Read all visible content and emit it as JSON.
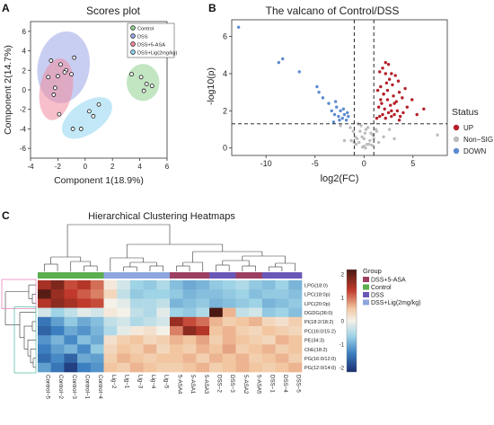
{
  "panels": {
    "a": "A",
    "b": "B",
    "c": "C"
  },
  "colors": {
    "control": "#2e9a3c",
    "dss": "#3a4db5",
    "asa": "#c0394f",
    "lig": "#4aa8c9",
    "ell_control": "#8fd08f",
    "ell_dss": "#9aa5e8",
    "ell_asa": "#f08a9c",
    "ell_lig": "#8fd6f0",
    "up": "#b3202a",
    "nonsig": "#bdbdbd",
    "down": "#5b8bd0",
    "heat_low": "#1f3f8f",
    "heat_mid": "#f4f1e9",
    "heat_high": "#7a1f15"
  },
  "chart_data": [
    {
      "type": "scatter",
      "title": "Scores plot",
      "xlabel": "Component 1(18.9%)",
      "ylabel": "Component 2(14.7%)",
      "xlim": [
        -4,
        6
      ],
      "ylim": [
        -7,
        7
      ],
      "x_ticks": [
        "-4",
        "-2",
        "0",
        "2",
        "4",
        "6"
      ],
      "y_ticks": [
        "-6",
        "-4",
        "-2",
        "0",
        "2",
        "4",
        "6"
      ],
      "legend": [
        "Control",
        "DSS",
        "DSS+5-ASA",
        "DSS+Lig(2mg/kg)"
      ],
      "series": [
        {
          "name": "Control",
          "x": [
            3.4,
            4.1,
            4.5,
            4.3,
            4.9
          ],
          "y": [
            1.6,
            1.3,
            0.6,
            -0.1,
            0.4
          ]
        },
        {
          "name": "DSS",
          "x": [
            -2.5,
            -1.8,
            -1.4,
            -1.0,
            -0.8,
            -2.0
          ],
          "y": [
            3.0,
            2.6,
            2.0,
            1.6,
            3.3,
            1.4
          ]
        },
        {
          "name": "DSS+5-ASA",
          "x": [
            -2.7,
            -2.2,
            -1.5,
            -2.3,
            -1.9
          ],
          "y": [
            1.3,
            0.2,
            1.8,
            -0.5,
            -2.5
          ]
        },
        {
          "name": "DSS+Lig(2mg/kg)",
          "x": [
            -0.9,
            -0.3,
            0.3,
            1.0,
            0.6
          ],
          "y": [
            -4.0,
            -4.0,
            -2.2,
            -1.5,
            -2.7
          ]
        }
      ]
    },
    {
      "type": "scatter",
      "title": "The valcano of Control/DSS",
      "xlabel": "log2(FC)",
      "ylabel": "-log10(p)",
      "xlim": [
        -13.5,
        8.5
      ],
      "ylim": [
        -0.4,
        6.9
      ],
      "x_ticks": [
        "-10",
        "-5",
        "0",
        "5"
      ],
      "y_ticks": [
        "0",
        "2",
        "4",
        "6"
      ],
      "legend_title": "Status",
      "legend": [
        "UP",
        "Non−SIG",
        "DOWN"
      ],
      "series": [
        {
          "name": "UP",
          "x": [
            1.3,
            1.6,
            1.9,
            2.2,
            2.5,
            2.8,
            3.1,
            3.4,
            3.7,
            4.0,
            4.4,
            4.9,
            5.4,
            6.1,
            1.5,
            1.8,
            2.1,
            2.4,
            2.7,
            3.0,
            3.3,
            3.6,
            3.9,
            4.2,
            1.4,
            1.7,
            2.0,
            2.3,
            2.6,
            2.9,
            3.2,
            3.5,
            1.6,
            1.9,
            2.2,
            2.5,
            2.8,
            3.1,
            2.0,
            2.4,
            2.8,
            3.6,
            1.7,
            2.2
          ],
          "y": [
            1.6,
            1.7,
            1.8,
            1.6,
            1.9,
            1.7,
            1.8,
            2.0,
            1.7,
            1.9,
            2.2,
            2.6,
            1.8,
            2.1,
            2.2,
            2.4,
            2.1,
            2.6,
            2.3,
            2.8,
            2.5,
            3.0,
            2.7,
            3.2,
            3.1,
            3.3,
            2.9,
            3.5,
            3.7,
            3.4,
            3.9,
            3.6,
            4.1,
            4.3,
            4.0,
            4.5,
            2.0,
            2.4,
            2.9,
            3.1,
            4.0,
            1.5,
            2.6,
            4.6
          ]
        },
        {
          "name": "DOWN",
          "x": [
            -12.8,
            -8.3,
            -8.7,
            -6.6,
            -4.8,
            -4.6,
            -4.2,
            -3.6,
            -3.3,
            -3.0,
            -2.8,
            -2.6,
            -2.4,
            -2.2,
            -2.0,
            -1.8,
            -1.6,
            -3.1,
            -2.9,
            -2.5,
            -2.1,
            -1.7
          ],
          "y": [
            6.5,
            4.8,
            4.6,
            4.1,
            3.3,
            3.0,
            2.7,
            2.4,
            2.0,
            1.8,
            2.2,
            1.7,
            2.0,
            1.6,
            1.8,
            1.5,
            1.7,
            1.4,
            2.5,
            1.5,
            2.1,
            1.9
          ]
        },
        {
          "name": "Non−SIG",
          "x": [
            0.0,
            -0.5,
            0.6,
            -0.9,
            0.9,
            -1.1,
            1.2,
            -0.3,
            0.3,
            -0.7,
            0.7,
            -1.4,
            1.5,
            -0.2,
            0.2,
            -0.6,
            0.5,
            1.0,
            -1.0,
            0.1,
            -0.4,
            0.4,
            2.0,
            -2.0,
            2.6,
            3.1,
            -2.4,
            7.5,
            0.8,
            -0.8,
            1.3,
            -1.3,
            0.0,
            0.15,
            -0.15
          ],
          "y": [
            0.1,
            0.3,
            0.4,
            0.6,
            0.7,
            0.9,
            1.0,
            1.2,
            0.2,
            0.5,
            0.8,
            1.1,
            0.3,
            0.6,
            1.0,
            1.3,
            0.2,
            0.5,
            0.3,
            0.8,
            0.9,
            1.1,
            0.6,
            0.4,
            1.0,
            0.5,
            1.2,
            0.7,
            0.15,
            0.2,
            0.9,
            0.4,
            0.5,
            0.0,
            0.05
          ]
        }
      ],
      "thresholds": {
        "x": [
          -1,
          1
        ],
        "y": 1.3
      }
    },
    {
      "type": "heatmap",
      "title": "Hierarchical Clustering Heatmaps",
      "columns": [
        "Control−5",
        "Control−2",
        "Control−3",
        "Control−1",
        "Control−4",
        "Lig−2",
        "Lig−1",
        "Lig−3",
        "Lig−4",
        "Lig−5",
        "5-ASA4",
        "5-ASA1",
        "5-ASA3",
        "DSS−2",
        "DSS−3",
        "5-ASA2",
        "5-ASA5",
        "DSS−1",
        "DSS−4",
        "DSS−5"
      ],
      "column_groups": [
        "Control",
        "Control",
        "Control",
        "Control",
        "Control",
        "DSS+Lig(2mg/kg)",
        "DSS+Lig(2mg/kg)",
        "DSS+Lig(2mg/kg)",
        "DSS+Lig(2mg/kg)",
        "DSS+Lig(2mg/kg)",
        "DSS+5-ASA",
        "DSS+5-ASA",
        "DSS+5-ASA",
        "DSS",
        "DSS",
        "DSS+5-ASA",
        "DSS+5-ASA",
        "DSS",
        "DSS",
        "DSS"
      ],
      "rows": [
        "LPG(18:0)",
        "LPC(18:0p)",
        "LPC(20:0p)",
        "DGDG(36:0)",
        "PI(18:2/18:2)",
        "PC(16:0/15:2)",
        "PE(34:3)",
        "ChE(18:2)",
        "PG(16:0/12:0)",
        "PG(12:0/14:0)"
      ],
      "values": [
        [
          1.5,
          1.8,
          1.2,
          1.4,
          1.0,
          0.1,
          -0.2,
          -0.5,
          -0.6,
          -0.4,
          -0.7,
          -0.9,
          -0.8,
          -0.6,
          -0.5,
          -0.4,
          -0.6,
          -0.7,
          -0.5,
          -0.8
        ],
        [
          2.1,
          1.6,
          1.3,
          1.1,
          0.9,
          0.3,
          -0.3,
          -0.6,
          -0.5,
          -0.5,
          -0.6,
          -0.8,
          -0.7,
          -0.7,
          -0.6,
          -0.5,
          -0.7,
          -0.6,
          -0.6,
          -0.7
        ],
        [
          1.4,
          1.7,
          1.5,
          1.3,
          1.2,
          0.0,
          -0.1,
          -0.4,
          -0.4,
          -0.3,
          -0.8,
          -0.7,
          -0.6,
          -0.8,
          -0.7,
          -0.6,
          -0.5,
          -0.8,
          -0.7,
          -0.6
        ],
        [
          -0.2,
          -0.5,
          -0.3,
          -0.1,
          -0.2,
          0.1,
          0.0,
          -0.3,
          -0.4,
          -0.1,
          -0.5,
          -0.6,
          -0.4,
          2.2,
          0.6,
          -0.3,
          -0.2,
          -0.6,
          -0.5,
          -0.7
        ],
        [
          -1.4,
          -1.0,
          -0.6,
          -0.9,
          -0.7,
          -0.3,
          -0.2,
          -0.4,
          -0.3,
          -0.2,
          1.6,
          1.2,
          1.0,
          0.6,
          0.4,
          0.5,
          0.6,
          0.3,
          0.2,
          0.4
        ],
        [
          -1.6,
          -1.3,
          -0.9,
          -1.1,
          -0.8,
          -0.4,
          -0.1,
          0.1,
          0.2,
          0.0,
          0.9,
          1.7,
          1.4,
          0.5,
          0.6,
          0.4,
          0.3,
          0.5,
          0.4,
          0.3
        ],
        [
          -1.1,
          -0.8,
          -1.2,
          -0.7,
          -0.9,
          0.2,
          0.4,
          0.5,
          0.3,
          0.4,
          0.6,
          0.5,
          0.7,
          0.4,
          0.6,
          0.5,
          0.4,
          0.3,
          0.6,
          0.5
        ],
        [
          -1.3,
          -1.0,
          -0.8,
          -1.2,
          -0.6,
          0.3,
          0.5,
          0.4,
          0.6,
          0.3,
          0.5,
          0.4,
          0.6,
          0.5,
          0.7,
          0.4,
          0.5,
          0.6,
          0.4,
          0.5
        ],
        [
          -1.5,
          -1.2,
          -1.6,
          -0.9,
          -1.0,
          0.4,
          0.6,
          0.5,
          0.4,
          0.5,
          0.5,
          0.6,
          0.4,
          0.6,
          0.5,
          0.6,
          0.4,
          0.5,
          0.6,
          0.4
        ],
        [
          -1.0,
          -1.4,
          -2.0,
          -1.3,
          -1.1,
          0.5,
          0.4,
          0.6,
          0.5,
          0.4,
          0.4,
          0.5,
          0.6,
          0.4,
          0.5,
          0.6,
          0.5,
          0.4,
          0.5,
          0.6
        ]
      ],
      "colorbar_ticks": [
        "2",
        "1",
        "0",
        "-1",
        "-2"
      ],
      "legend_title": "Group",
      "legend": [
        "DSS+5-ASA",
        "Control",
        "DSS",
        "DSS+Lig(2mg/kg)"
      ]
    }
  ]
}
